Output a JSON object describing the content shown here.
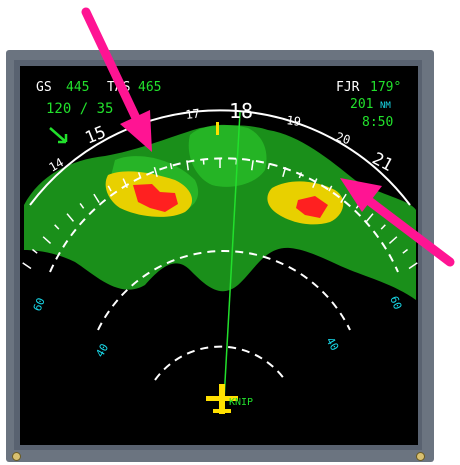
{
  "header": {
    "gs_label": "GS",
    "gs_value": "445",
    "tas_label": "TAS",
    "tas_value": "465",
    "wind": "120 / 35",
    "waypoint": "FJR",
    "waypoint_bearing": "179°",
    "distance": "201",
    "distance_unit": "NM",
    "eta": "8:50"
  },
  "compass": {
    "headings": [
      "14",
      "15",
      "17",
      "18",
      "19",
      "20",
      "21"
    ]
  },
  "range_rings": {
    "left_outer": "60",
    "left_inner": "40",
    "right_outer": "60",
    "right_inner": "40"
  },
  "aircraft": {
    "label": "KNIP"
  },
  "colors": {
    "weather_green": "#1fa81f",
    "weather_yellow": "#e8d000",
    "weather_red": "#ff2020",
    "arrow_magenta": "#ff1493",
    "text_green": "#22e02c",
    "text_cyan": "#18d8e8",
    "aircraft_yellow": "#ffe000"
  }
}
